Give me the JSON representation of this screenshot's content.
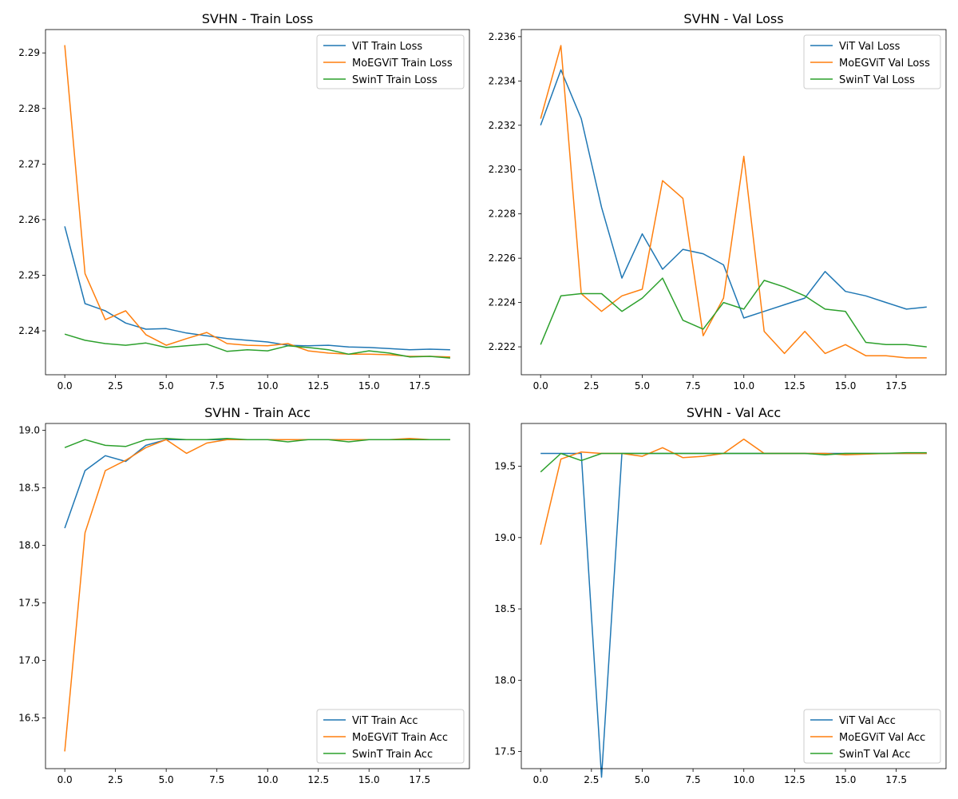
{
  "colors": {
    "vit": "#1f77b4",
    "moe": "#ff7f0e",
    "swin": "#2ca02c"
  },
  "chart_data": [
    {
      "type": "line",
      "title": "SVHN - Train Loss",
      "x": [
        0,
        1,
        2,
        3,
        4,
        5,
        6,
        7,
        8,
        9,
        10,
        11,
        12,
        13,
        14,
        15,
        16,
        17,
        18,
        19
      ],
      "xlim": [
        -0.95,
        19.95
      ],
      "ylim": [
        2.2321,
        2.2942
      ],
      "xticks": [
        0,
        2.5,
        5,
        7.5,
        10,
        12.5,
        15,
        17.5
      ],
      "xtick_labels": [
        "0.0",
        "2.5",
        "5.0",
        "7.5",
        "10.0",
        "12.5",
        "15.0",
        "17.5"
      ],
      "yticks": [
        2.24,
        2.25,
        2.26,
        2.27,
        2.28,
        2.29
      ],
      "ytick_labels": [
        "2.24",
        "2.25",
        "2.26",
        "2.27",
        "2.28",
        "2.29"
      ],
      "legend": "top-right",
      "grid": false,
      "series": [
        {
          "name": "ViT Train Loss",
          "color": "#1f77b4",
          "values": [
            2.2588,
            2.2449,
            2.2436,
            2.2414,
            2.2403,
            2.2404,
            2.2396,
            2.2391,
            2.2386,
            2.2383,
            2.238,
            2.2374,
            2.2373,
            2.2374,
            2.2371,
            2.237,
            2.2368,
            2.2366,
            2.2367,
            2.2366
          ]
        },
        {
          "name": "MoEGViT Train Loss",
          "color": "#ff7f0e",
          "values": [
            2.2914,
            2.2503,
            2.242,
            2.2436,
            2.2393,
            2.2374,
            2.2386,
            2.2397,
            2.2377,
            2.2374,
            2.2373,
            2.2377,
            2.2364,
            2.236,
            2.2358,
            2.2358,
            2.2357,
            2.2354,
            2.2354,
            2.2353
          ]
        },
        {
          "name": "SwinT Train Loss",
          "color": "#2ca02c",
          "values": [
            2.2394,
            2.2383,
            2.2377,
            2.2374,
            2.2378,
            2.237,
            2.2373,
            2.2376,
            2.2363,
            2.2366,
            2.2364,
            2.2373,
            2.237,
            2.2366,
            2.2358,
            2.2364,
            2.236,
            2.2353,
            2.2354,
            2.2351
          ]
        }
      ]
    },
    {
      "type": "line",
      "title": "SVHN - Val Loss",
      "x": [
        0,
        1,
        2,
        3,
        4,
        5,
        6,
        7,
        8,
        9,
        10,
        11,
        12,
        13,
        14,
        15,
        16,
        17,
        18,
        19
      ],
      "xlim": [
        -0.95,
        19.95
      ],
      "ylim": [
        2.22074,
        2.23632
      ],
      "xticks": [
        0,
        2.5,
        5,
        7.5,
        10,
        12.5,
        15,
        17.5
      ],
      "xtick_labels": [
        "0.0",
        "2.5",
        "5.0",
        "7.5",
        "10.0",
        "12.5",
        "15.0",
        "17.5"
      ],
      "yticks": [
        2.222,
        2.224,
        2.226,
        2.228,
        2.23,
        2.232,
        2.234,
        2.236
      ],
      "ytick_labels": [
        "2.222",
        "2.224",
        "2.226",
        "2.228",
        "2.230",
        "2.232",
        "2.234",
        "2.236"
      ],
      "legend": "top-right",
      "grid": false,
      "series": [
        {
          "name": "ViT Val Loss",
          "color": "#1f77b4",
          "values": [
            2.232,
            2.2345,
            2.2323,
            2.2283,
            2.2251,
            2.2271,
            2.2255,
            2.2264,
            2.2262,
            2.2257,
            2.2233,
            2.2236,
            2.2239,
            2.2242,
            2.2254,
            2.2245,
            2.2243,
            2.224,
            2.2237,
            2.2238
          ]
        },
        {
          "name": "MoEGViT Val Loss",
          "color": "#ff7f0e",
          "values": [
            2.2323,
            2.2356,
            2.2244,
            2.2236,
            2.2243,
            2.2246,
            2.2295,
            2.2287,
            2.2225,
            2.2242,
            2.2306,
            2.2227,
            2.2217,
            2.2227,
            2.2217,
            2.2221,
            2.2216,
            2.2216,
            2.2215,
            2.2215
          ]
        },
        {
          "name": "SwinT Val Loss",
          "color": "#2ca02c",
          "values": [
            2.2221,
            2.2243,
            2.2244,
            2.2244,
            2.2236,
            2.2242,
            2.2251,
            2.2232,
            2.2228,
            2.224,
            2.2237,
            2.225,
            2.2247,
            2.2243,
            2.2237,
            2.2236,
            2.2222,
            2.2221,
            2.2221,
            2.222
          ]
        }
      ]
    },
    {
      "type": "line",
      "title": "SVHN - Train Acc",
      "x": [
        0,
        1,
        2,
        3,
        4,
        5,
        6,
        7,
        8,
        9,
        10,
        11,
        12,
        13,
        14,
        15,
        16,
        17,
        18,
        19
      ],
      "xlim": [
        -0.95,
        19.95
      ],
      "ylim": [
        16.06,
        19.06
      ],
      "xticks": [
        0,
        2.5,
        5,
        7.5,
        10,
        12.5,
        15,
        17.5
      ],
      "xtick_labels": [
        "0.0",
        "2.5",
        "5.0",
        "7.5",
        "10.0",
        "12.5",
        "15.0",
        "17.5"
      ],
      "yticks": [
        16.5,
        17.0,
        17.5,
        18.0,
        18.5,
        19.0
      ],
      "ytick_labels": [
        "16.5",
        "17.0",
        "17.5",
        "18.0",
        "18.5",
        "19.0"
      ],
      "legend": "bottom-right",
      "grid": false,
      "series": [
        {
          "name": "ViT Train Acc",
          "color": "#1f77b4",
          "values": [
            18.15,
            18.65,
            18.78,
            18.73,
            18.87,
            18.92,
            18.92,
            18.92,
            18.92,
            18.92,
            18.92,
            18.92,
            18.92,
            18.92,
            18.92,
            18.92,
            18.92,
            18.92,
            18.92,
            18.92
          ]
        },
        {
          "name": "MoEGViT Train Acc",
          "color": "#ff7f0e",
          "values": [
            16.21,
            18.11,
            18.65,
            18.74,
            18.85,
            18.92,
            18.8,
            18.89,
            18.92,
            18.92,
            18.92,
            18.92,
            18.92,
            18.92,
            18.92,
            18.92,
            18.92,
            18.93,
            18.92,
            18.92
          ]
        },
        {
          "name": "SwinT Train Acc",
          "color": "#2ca02c",
          "values": [
            18.85,
            18.92,
            18.87,
            18.86,
            18.92,
            18.93,
            18.92,
            18.92,
            18.93,
            18.92,
            18.92,
            18.9,
            18.92,
            18.92,
            18.9,
            18.92,
            18.92,
            18.92,
            18.92,
            18.92
          ]
        }
      ]
    },
    {
      "type": "line",
      "title": "SVHN - Val Acc",
      "x": [
        0,
        1,
        2,
        3,
        4,
        5,
        6,
        7,
        8,
        9,
        10,
        11,
        12,
        13,
        14,
        15,
        16,
        17,
        18,
        19
      ],
      "xlim": [
        -0.95,
        19.95
      ],
      "ylim": [
        17.38,
        19.8
      ],
      "xticks": [
        0,
        2.5,
        5,
        7.5,
        10,
        12.5,
        15,
        17.5
      ],
      "xtick_labels": [
        "0.0",
        "2.5",
        "5.0",
        "7.5",
        "10.0",
        "12.5",
        "15.0",
        "17.5"
      ],
      "yticks": [
        17.5,
        18.0,
        18.5,
        19.0,
        19.5
      ],
      "ytick_labels": [
        "17.5",
        "18.0",
        "18.5",
        "19.0",
        "19.5"
      ],
      "legend": "bottom-right",
      "grid": false,
      "series": [
        {
          "name": "ViT Val Acc",
          "color": "#1f77b4",
          "values": [
            19.59,
            19.59,
            19.59,
            17.32,
            19.59,
            19.59,
            19.59,
            19.59,
            19.59,
            19.59,
            19.59,
            19.59,
            19.59,
            19.59,
            19.59,
            19.59,
            19.59,
            19.59,
            19.59,
            19.59
          ]
        },
        {
          "name": "MoEGViT Val Acc",
          "color": "#ff7f0e",
          "values": [
            18.95,
            19.55,
            19.6,
            19.59,
            19.59,
            19.57,
            19.63,
            19.56,
            19.57,
            19.59,
            19.69,
            19.59,
            19.59,
            19.59,
            19.59,
            19.58,
            19.585,
            19.59,
            19.59,
            19.59
          ]
        },
        {
          "name": "SwinT Val Acc",
          "color": "#2ca02c",
          "values": [
            19.46,
            19.59,
            19.54,
            19.59,
            19.59,
            19.59,
            19.59,
            19.59,
            19.59,
            19.59,
            19.59,
            19.59,
            19.59,
            19.59,
            19.58,
            19.59,
            19.59,
            19.59,
            19.595,
            19.595
          ]
        }
      ]
    }
  ]
}
